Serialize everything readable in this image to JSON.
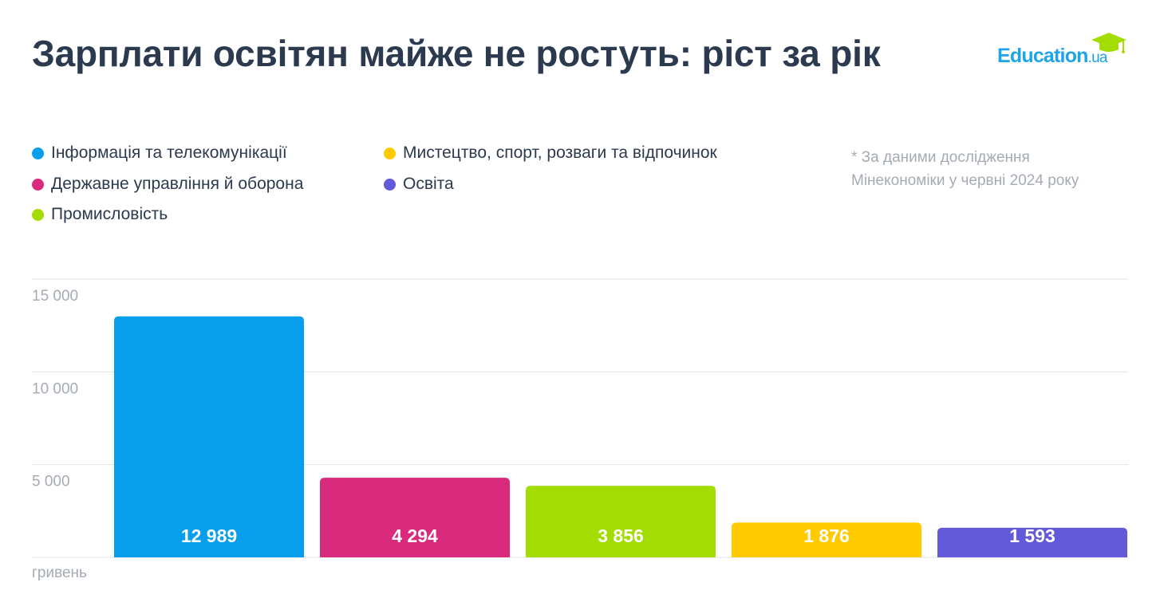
{
  "title": "Зарплати освітян майже не ростуть: ріст за рік",
  "logo": {
    "main": "Education",
    "suffix": ".ua"
  },
  "note": [
    "* За даними дослідження",
    "Мінекономіки у червні 2024 року"
  ],
  "legend": [
    {
      "label": "Інформація та телекомунікації",
      "color": "#079fec"
    },
    {
      "label": "Державне управління й оборона",
      "color": "#d92a7e"
    },
    {
      "label": "Промисловість",
      "color": "#a3dc00"
    },
    {
      "label": "Мистецтво, спорт, розваги та відпочинок",
      "color": "#ffcb00"
    },
    {
      "label": "Освіта",
      "color": "#625ad8"
    }
  ],
  "chart_data": {
    "type": "bar",
    "categories": [
      "Інформація та телекомунікації",
      "Державне управління й оборона",
      "Промисловість",
      "Мистецтво, спорт, розваги та відпочинок",
      "Освіта"
    ],
    "values": [
      12989,
      4294,
      3856,
      1876,
      1593
    ],
    "value_labels": [
      "12 989",
      "4 294",
      "3 856",
      "1 876",
      "1 593"
    ],
    "colors": [
      "#079fec",
      "#d92a7e",
      "#a3dc00",
      "#ffcb00",
      "#625ad8"
    ],
    "ylabel": "гривень",
    "ylim": [
      0,
      15000
    ],
    "yticks": [
      5000,
      10000,
      15000
    ],
    "ytick_labels": [
      "5 000",
      "10 000",
      "15 000"
    ],
    "grid": true,
    "legend_position": "top"
  }
}
